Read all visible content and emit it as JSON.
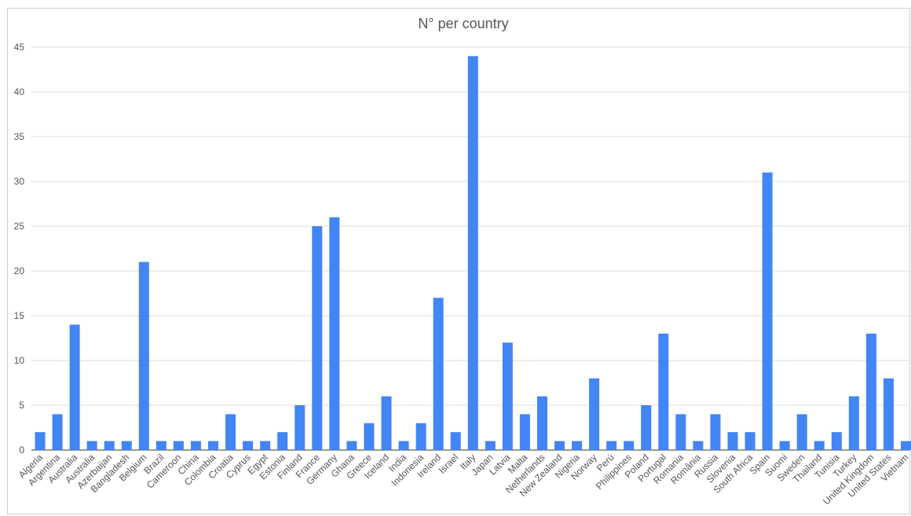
{
  "chart_data": {
    "type": "bar",
    "title": "N° per country",
    "xlabel": "",
    "ylabel": "",
    "ylim": [
      0,
      45
    ],
    "yticks": [
      0,
      5,
      10,
      15,
      20,
      25,
      30,
      35,
      40,
      45
    ],
    "grid": true,
    "legend": "none",
    "bar_color": "#4285f4",
    "categories": [
      "Algeria",
      "Argentina",
      "Australia",
      "Australia",
      "Azerbaijan",
      "Bangladesh",
      "Belgium",
      "Brazil",
      "Cameroon",
      "China",
      "Colombia",
      "Croatia",
      "Cyprus",
      "Egypt",
      "Estonia",
      "Finland",
      "France",
      "Germany",
      "Ghana",
      "Greece",
      "Iceland",
      "India",
      "Indonesia",
      "Ireland",
      "Israel",
      "Italy",
      "Japan",
      "Latvia",
      "Malta",
      "Netherlands",
      "New Zealand",
      "Nigeria",
      "Norway",
      "Perú",
      "Philippines",
      "Poland",
      "Portugal",
      "Romania",
      "România",
      "Russia",
      "Slovenia",
      "South Africa",
      "Spain",
      "Suomi",
      "Sweden",
      "Thailand",
      "Tunisia",
      "Turkey",
      "United Kingdom",
      "United States",
      "Vietnam"
    ],
    "values": [
      2,
      4,
      14,
      1,
      1,
      1,
      21,
      1,
      1,
      1,
      1,
      4,
      1,
      1,
      2,
      5,
      25,
      26,
      1,
      3,
      6,
      1,
      3,
      17,
      2,
      44,
      1,
      12,
      4,
      6,
      1,
      1,
      8,
      1,
      1,
      5,
      13,
      4,
      1,
      4,
      2,
      2,
      31,
      1,
      4,
      1,
      2,
      6,
      13,
      8,
      1
    ]
  }
}
